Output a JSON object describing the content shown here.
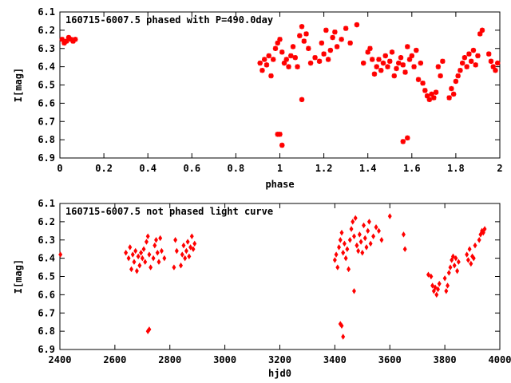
{
  "chart_data": [
    {
      "type": "scatter",
      "title": "160715-6007.5 phased with P=490.0day",
      "xlabel": "phase",
      "ylabel": "I[mag]",
      "xlim": [
        0,
        2
      ],
      "ylim": [
        6.1,
        6.9
      ],
      "y_inverted": true,
      "grid": false,
      "xticks": [
        "0",
        "0.2",
        "0.4",
        "0.6",
        "0.8",
        "1",
        "1.2",
        "1.4",
        "1.6",
        "1.8",
        "2"
      ],
      "yticks": [
        "6.1",
        "6.2",
        "6.3",
        "6.4",
        "6.5",
        "6.6",
        "6.7",
        "6.8",
        "6.9"
      ],
      "marker_color": "#ff0000",
      "points": [
        [
          0.01,
          6.25
        ],
        [
          0.02,
          6.27
        ],
        [
          0.03,
          6.26
        ],
        [
          0.04,
          6.24
        ],
        [
          0.05,
          6.25
        ],
        [
          0.06,
          6.26
        ],
        [
          0.07,
          6.25
        ],
        [
          0.91,
          6.38
        ],
        [
          0.92,
          6.42
        ],
        [
          0.93,
          6.36
        ],
        [
          0.94,
          6.39
        ],
        [
          0.95,
          6.34
        ],
        [
          0.96,
          6.45
        ],
        [
          0.97,
          6.36
        ],
        [
          0.98,
          6.3
        ],
        [
          0.99,
          6.27
        ],
        [
          1.0,
          6.25
        ],
        [
          1.01,
          6.32
        ],
        [
          1.02,
          6.38
        ],
        [
          1.03,
          6.36
        ],
        [
          1.04,
          6.4
        ],
        [
          1.05,
          6.34
        ],
        [
          1.06,
          6.29
        ],
        [
          1.07,
          6.35
        ],
        [
          1.08,
          6.4
        ],
        [
          1.09,
          6.23
        ],
        [
          1.1,
          6.18
        ],
        [
          1.11,
          6.26
        ],
        [
          1.12,
          6.22
        ],
        [
          1.13,
          6.3
        ],
        [
          1.14,
          6.38
        ],
        [
          1.16,
          6.35
        ],
        [
          1.18,
          6.37
        ],
        [
          1.19,
          6.27
        ],
        [
          1.2,
          6.33
        ],
        [
          1.21,
          6.2
        ],
        [
          1.22,
          6.36
        ],
        [
          1.23,
          6.31
        ],
        [
          1.24,
          6.24
        ],
        [
          1.25,
          6.21
        ],
        [
          1.26,
          6.29
        ],
        [
          1.28,
          6.25
        ],
        [
          1.3,
          6.19
        ],
        [
          1.32,
          6.27
        ],
        [
          1.35,
          6.17
        ],
        [
          0.99,
          6.77
        ],
        [
          1.0,
          6.77
        ],
        [
          1.01,
          6.83
        ],
        [
          1.1,
          6.58
        ],
        [
          1.38,
          6.38
        ],
        [
          1.4,
          6.32
        ],
        [
          1.41,
          6.3
        ],
        [
          1.42,
          6.36
        ],
        [
          1.43,
          6.44
        ],
        [
          1.44,
          6.4
        ],
        [
          1.45,
          6.36
        ],
        [
          1.46,
          6.42
        ],
        [
          1.47,
          6.38
        ],
        [
          1.48,
          6.34
        ],
        [
          1.49,
          6.4
        ],
        [
          1.5,
          6.37
        ],
        [
          1.51,
          6.32
        ],
        [
          1.52,
          6.45
        ],
        [
          1.53,
          6.41
        ],
        [
          1.54,
          6.38
        ],
        [
          1.55,
          6.35
        ],
        [
          1.56,
          6.39
        ],
        [
          1.57,
          6.43
        ],
        [
          1.58,
          6.29
        ],
        [
          1.59,
          6.36
        ],
        [
          1.6,
          6.34
        ],
        [
          1.61,
          6.4
        ],
        [
          1.62,
          6.31
        ],
        [
          1.63,
          6.47
        ],
        [
          1.64,
          6.38
        ],
        [
          1.65,
          6.49
        ],
        [
          1.66,
          6.53
        ],
        [
          1.67,
          6.56
        ],
        [
          1.68,
          6.58
        ],
        [
          1.69,
          6.55
        ],
        [
          1.7,
          6.57
        ],
        [
          1.71,
          6.54
        ],
        [
          1.72,
          6.4
        ],
        [
          1.73,
          6.45
        ],
        [
          1.74,
          6.37
        ],
        [
          1.77,
          6.57
        ],
        [
          1.78,
          6.52
        ],
        [
          1.79,
          6.55
        ],
        [
          1.8,
          6.48
        ],
        [
          1.81,
          6.45
        ],
        [
          1.82,
          6.42
        ],
        [
          1.83,
          6.38
        ],
        [
          1.84,
          6.35
        ],
        [
          1.85,
          6.4
        ],
        [
          1.86,
          6.33
        ],
        [
          1.87,
          6.37
        ],
        [
          1.88,
          6.31
        ],
        [
          1.89,
          6.39
        ],
        [
          1.9,
          6.34
        ],
        [
          1.91,
          6.22
        ],
        [
          1.92,
          6.2
        ],
        [
          1.95,
          6.33
        ],
        [
          1.96,
          6.37
        ],
        [
          1.97,
          6.4
        ],
        [
          1.98,
          6.42
        ],
        [
          1.99,
          6.38
        ],
        [
          1.56,
          6.81
        ],
        [
          1.58,
          6.79
        ]
      ]
    },
    {
      "type": "scatter",
      "title": "160715-6007.5 not phased light curve",
      "xlabel": "hjd0",
      "ylabel": "I[mag]",
      "xlim": [
        2400,
        4000
      ],
      "ylim": [
        6.1,
        6.9
      ],
      "y_inverted": true,
      "grid": false,
      "xticks": [
        "2400",
        "2600",
        "2800",
        "3000",
        "3200",
        "3400",
        "3600",
        "3800",
        "4000"
      ],
      "yticks": [
        "6.1",
        "6.2",
        "6.3",
        "6.4",
        "6.5",
        "6.6",
        "6.7",
        "6.8",
        "6.9"
      ],
      "marker_color": "#ff0000",
      "points": [
        [
          2402,
          6.38
        ],
        [
          2640,
          6.37
        ],
        [
          2650,
          6.4
        ],
        [
          2655,
          6.34
        ],
        [
          2660,
          6.46
        ],
        [
          2665,
          6.38
        ],
        [
          2670,
          6.42
        ],
        [
          2675,
          6.36
        ],
        [
          2680,
          6.47
        ],
        [
          2685,
          6.39
        ],
        [
          2690,
          6.44
        ],
        [
          2695,
          6.37
        ],
        [
          2700,
          6.4
        ],
        [
          2705,
          6.35
        ],
        [
          2710,
          6.42
        ],
        [
          2715,
          6.31
        ],
        [
          2720,
          6.28
        ],
        [
          2725,
          6.38
        ],
        [
          2730,
          6.45
        ],
        [
          2740,
          6.4
        ],
        [
          2745,
          6.33
        ],
        [
          2750,
          6.3
        ],
        [
          2755,
          6.37
        ],
        [
          2760,
          6.42
        ],
        [
          2765,
          6.29
        ],
        [
          2770,
          6.36
        ],
        [
          2780,
          6.4
        ],
        [
          2815,
          6.45
        ],
        [
          2820,
          6.3
        ],
        [
          2825,
          6.36
        ],
        [
          2840,
          6.44
        ],
        [
          2845,
          6.38
        ],
        [
          2850,
          6.33
        ],
        [
          2855,
          6.4
        ],
        [
          2860,
          6.36
        ],
        [
          2865,
          6.31
        ],
        [
          2870,
          6.39
        ],
        [
          2875,
          6.34
        ],
        [
          2880,
          6.28
        ],
        [
          2885,
          6.35
        ],
        [
          2890,
          6.32
        ],
        [
          2720,
          6.8
        ],
        [
          2725,
          6.79
        ],
        [
          3400,
          6.41
        ],
        [
          3405,
          6.38
        ],
        [
          3410,
          6.45
        ],
        [
          3415,
          6.34
        ],
        [
          3420,
          6.3
        ],
        [
          3425,
          6.26
        ],
        [
          3430,
          6.37
        ],
        [
          3435,
          6.32
        ],
        [
          3440,
          6.4
        ],
        [
          3445,
          6.35
        ],
        [
          3450,
          6.46
        ],
        [
          3455,
          6.3
        ],
        [
          3460,
          6.24
        ],
        [
          3465,
          6.2
        ],
        [
          3470,
          6.28
        ],
        [
          3475,
          6.18
        ],
        [
          3480,
          6.33
        ],
        [
          3485,
          6.36
        ],
        [
          3490,
          6.27
        ],
        [
          3495,
          6.31
        ],
        [
          3500,
          6.37
        ],
        [
          3505,
          6.22
        ],
        [
          3510,
          6.29
        ],
        [
          3515,
          6.34
        ],
        [
          3520,
          6.25
        ],
        [
          3525,
          6.2
        ],
        [
          3530,
          6.32
        ],
        [
          3540,
          6.28
        ],
        [
          3550,
          6.23
        ],
        [
          3560,
          6.25
        ],
        [
          3570,
          6.3
        ],
        [
          3600,
          6.17
        ],
        [
          3650,
          6.27
        ],
        [
          3655,
          6.35
        ],
        [
          3420,
          6.76
        ],
        [
          3425,
          6.77
        ],
        [
          3430,
          6.83
        ],
        [
          3470,
          6.58
        ],
        [
          3740,
          6.49
        ],
        [
          3750,
          6.5
        ],
        [
          3755,
          6.55
        ],
        [
          3760,
          6.58
        ],
        [
          3765,
          6.56
        ],
        [
          3770,
          6.6
        ],
        [
          3775,
          6.57
        ],
        [
          3780,
          6.54
        ],
        [
          3800,
          6.51
        ],
        [
          3805,
          6.58
        ],
        [
          3810,
          6.55
        ],
        [
          3815,
          6.48
        ],
        [
          3820,
          6.45
        ],
        [
          3825,
          6.41
        ],
        [
          3830,
          6.39
        ],
        [
          3835,
          6.44
        ],
        [
          3840,
          6.4
        ],
        [
          3845,
          6.47
        ],
        [
          3850,
          6.42
        ],
        [
          3880,
          6.38
        ],
        [
          3885,
          6.41
        ],
        [
          3890,
          6.35
        ],
        [
          3895,
          6.43
        ],
        [
          3900,
          6.39
        ],
        [
          3905,
          6.4
        ],
        [
          3910,
          6.33
        ],
        [
          3925,
          6.3
        ],
        [
          3930,
          6.27
        ],
        [
          3935,
          6.25
        ],
        [
          3940,
          6.26
        ],
        [
          3945,
          6.24
        ]
      ]
    }
  ]
}
